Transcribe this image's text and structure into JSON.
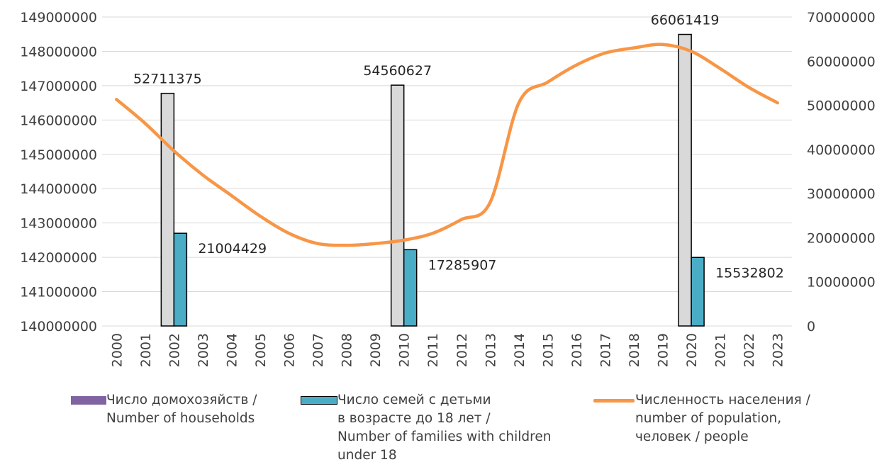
{
  "chart_data": {
    "type": "bar",
    "x": [
      "2000",
      "2001",
      "2002",
      "2003",
      "2004",
      "2005",
      "2006",
      "2007",
      "2008",
      "2009",
      "2010",
      "2011",
      "2012",
      "2013",
      "2014",
      "2015",
      "2016",
      "2017",
      "2018",
      "2019",
      "2020",
      "2021",
      "2022",
      "2023"
    ],
    "left_axis": {
      "ylim": [
        140000000,
        149000000
      ],
      "ticks": [
        "140000000",
        "141000000",
        "142000000",
        "143000000",
        "144000000",
        "145000000",
        "146000000",
        "147000000",
        "148000000",
        "149000000"
      ]
    },
    "right_axis": {
      "ylim": [
        0,
        70000000
      ],
      "ticks": [
        "0",
        "10000000",
        "20000000",
        "30000000",
        "40000000",
        "50000000",
        "60000000",
        "70000000"
      ]
    },
    "series": [
      {
        "name": "Число домохозяйств / Number of households",
        "axis": "right",
        "kind": "bar",
        "fill": "#d9d9d9",
        "legend_color": "#8064a2",
        "x": [
          "2002",
          "2010",
          "2020"
        ],
        "values": [
          52711375,
          54560627,
          66061419
        ],
        "labels": [
          "52711375",
          "54560627",
          "66061419"
        ]
      },
      {
        "name": "Число семей с детьми в возрасте до 18 лет / Number of families with children under 18",
        "axis": "right",
        "kind": "bar",
        "fill": "#4bacc6",
        "legend_color": "#4bacc6",
        "x": [
          "2002",
          "2010",
          "2020"
        ],
        "values": [
          21004429,
          17285907,
          15532802
        ],
        "labels": [
          "21004429",
          "17285907",
          "15532802"
        ]
      },
      {
        "name": "Численность населения / number of population, человек / people",
        "axis": "left",
        "kind": "line",
        "color": "#f79646",
        "values": [
          146600000,
          145900000,
          145100000,
          144400000,
          143800000,
          143200000,
          142700000,
          142400000,
          142350000,
          142400000,
          142500000,
          142700000,
          143100000,
          143600000,
          146500000,
          147100000,
          147600000,
          147950000,
          148100000,
          148200000,
          148000000,
          147500000,
          146950000,
          146500000
        ]
      }
    ],
    "legend": [
      {
        "color": "#8064a2",
        "swatch": "bar",
        "lines": [
          "Число домохозяйств /",
          "Number of households"
        ]
      },
      {
        "color": "#4bacc6",
        "swatch": "bar",
        "lines": [
          "Число семей с детьми",
          "в возрасте до 18 лет /",
          "Number of families with children",
          "under 18"
        ]
      },
      {
        "color": "#f79646",
        "swatch": "line",
        "lines": [
          "Численность населения /",
          "number of population,",
          "человек / people"
        ]
      }
    ],
    "legend_placement": "bottom",
    "grid": true
  }
}
